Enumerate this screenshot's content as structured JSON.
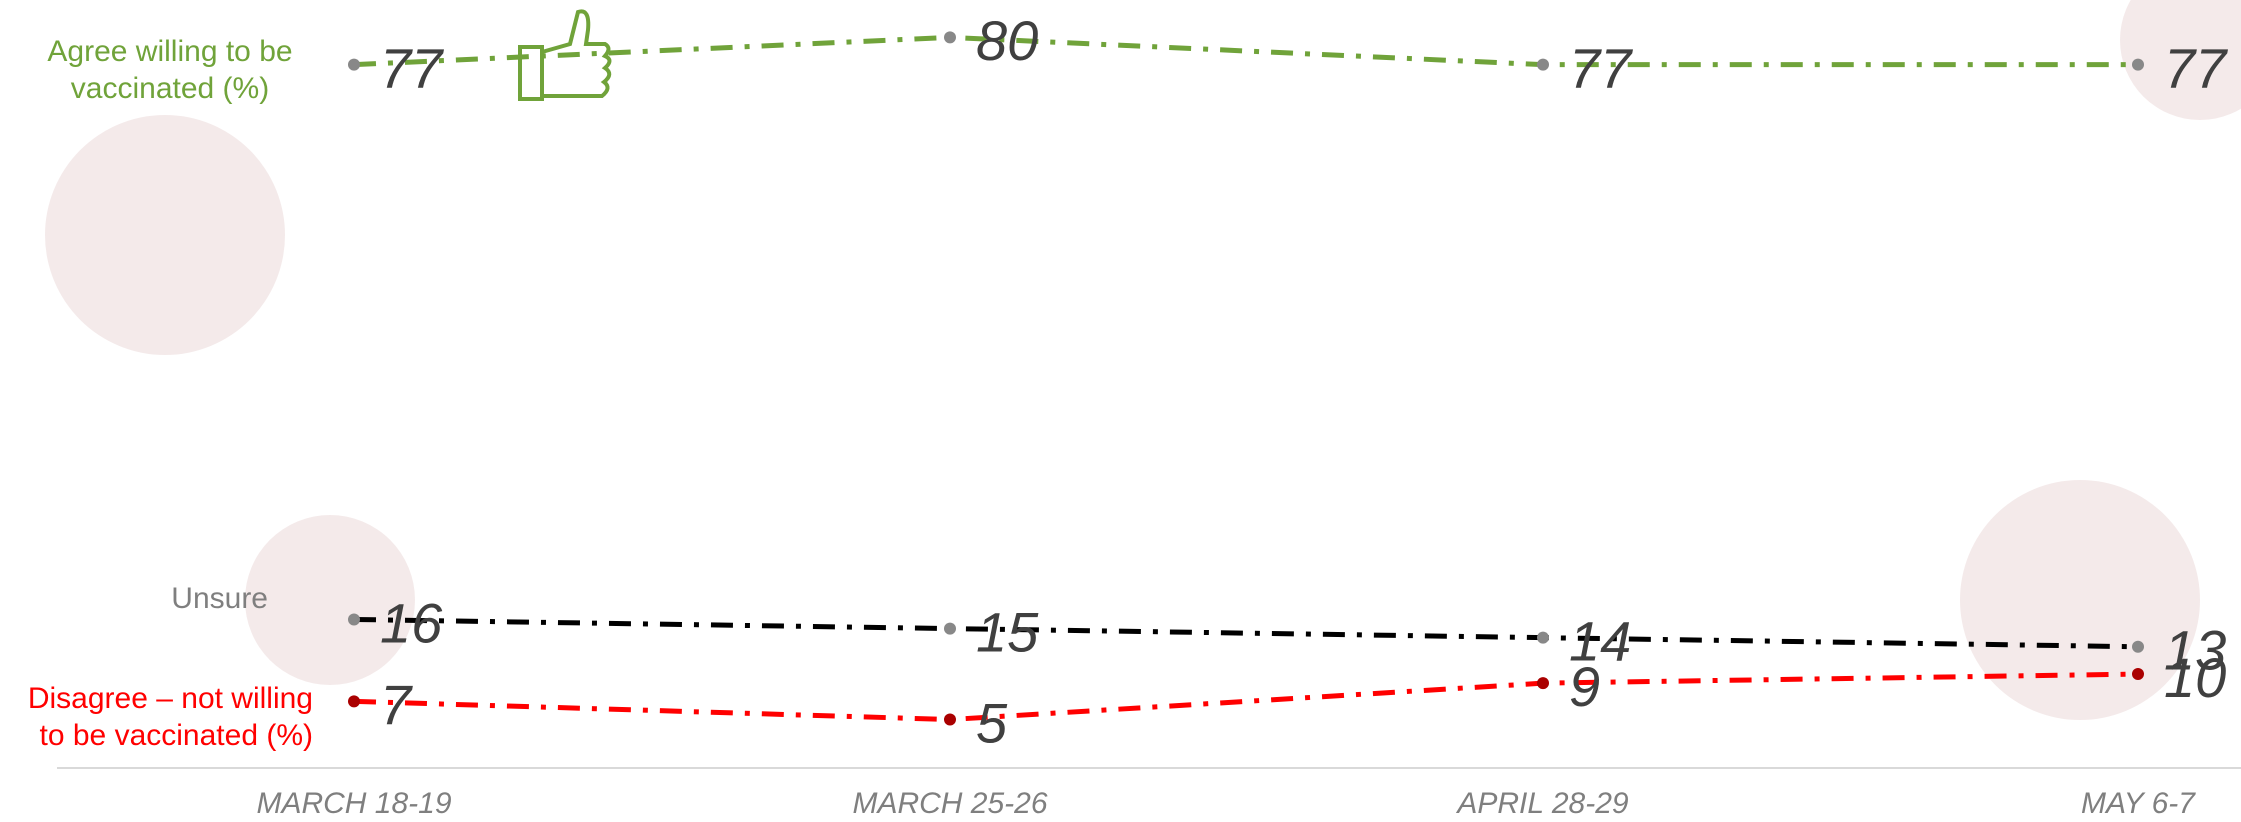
{
  "chart_data": {
    "type": "line",
    "categories": [
      "MARCH 18-19",
      "MARCH 25-26",
      "APRIL 28-29",
      "MAY 6-7"
    ],
    "series": [
      {
        "name": "Agree willing to be vaccinated (%)",
        "color": "#70a33a",
        "values": [
          77,
          80,
          77,
          77
        ]
      },
      {
        "name": "Unsure",
        "color": "#000000",
        "values": [
          16,
          15,
          14,
          13
        ]
      },
      {
        "name": "Disagree – not willing to be vaccinated (%)",
        "color": "#ff0000",
        "values": [
          7,
          5,
          9,
          10
        ]
      }
    ],
    "ylim": [
      0,
      84
    ]
  }
}
